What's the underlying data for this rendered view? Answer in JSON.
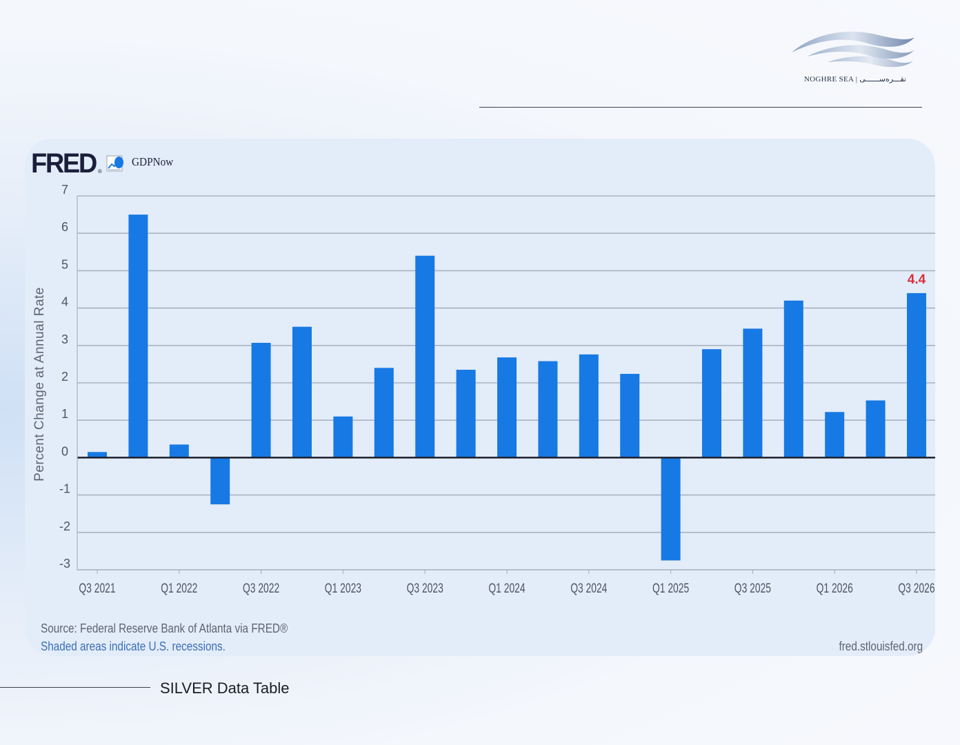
{
  "brand": {
    "logo_icon": "wave-logo-icon",
    "name_en": "NOGHRE SEA",
    "name_fa": "نقـــره‌ســــــی"
  },
  "chart_card": {
    "fred_logo": "FRED",
    "fred_reg": "®",
    "series_name": "GDPNow",
    "ylabel": "Percent Change at Annual Rate",
    "source": "Source: Federal Reserve Bank of Atlanta via FRED®",
    "shaded_note": "Shaded areas indicate U.S. recessions.",
    "site": "fred.stlouisfed.org"
  },
  "caption": "SILVER Data Table",
  "colors": {
    "bar": "#1779e4",
    "highlight_label": "#d9303b",
    "grid": "#aab3c1",
    "zero_line": "#1c1f2a"
  },
  "chart_data": {
    "type": "bar",
    "title": "",
    "xlabel": "",
    "ylabel": "Percent Change at Annual Rate",
    "ylim": [
      -3,
      7
    ],
    "yticks": [
      7,
      6,
      5,
      4,
      3,
      2,
      1,
      0,
      -1,
      -2,
      -3
    ],
    "grid": true,
    "legend": "top-left",
    "series": [
      {
        "name": "GDPNow",
        "categories": [
          "Q3 2021",
          "Q4 2021",
          "Q1 2022",
          "Q2 2022",
          "Q3 2022",
          "Q4 2022",
          "Q1 2023",
          "Q2 2023",
          "Q3 2023",
          "Q4 2023",
          "Q1 2024",
          "Q2 2024",
          "Q3 2024",
          "Q4 2024",
          "Q1 2025",
          "Q2 2025",
          "Q3 2025",
          "Q4 2025",
          "Q1 2026",
          "Q2 2026",
          "Q3 2026"
        ],
        "values": [
          0.15,
          6.5,
          0.35,
          -1.25,
          3.07,
          3.5,
          1.1,
          2.4,
          5.4,
          2.35,
          2.68,
          2.58,
          2.76,
          2.24,
          -2.75,
          2.9,
          3.45,
          4.2,
          1.22,
          1.53,
          4.4
        ]
      }
    ],
    "xtick_labels": [
      "Q3 2021",
      "Q1 2022",
      "Q3 2022",
      "Q1 2023",
      "Q3 2023",
      "Q1 2024",
      "Q3 2024",
      "Q1 2025",
      "Q3 2025",
      "Q1 2026",
      "Q3 2026"
    ],
    "annotation": {
      "category": "Q3 2026",
      "text": "4.4"
    }
  }
}
